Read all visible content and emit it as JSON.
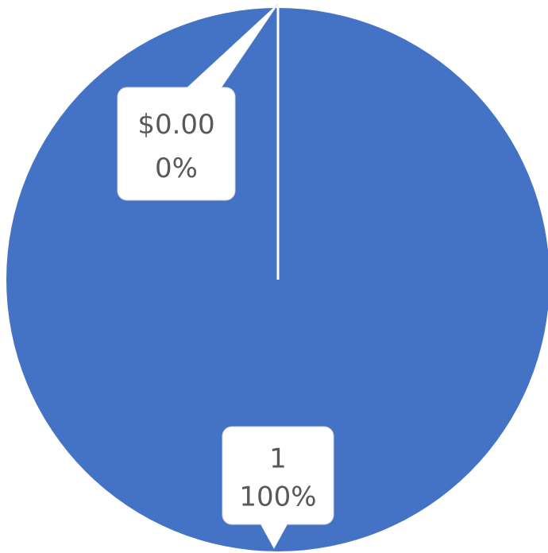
{
  "chart_data": {
    "type": "pie",
    "values": [
      0,
      1
    ],
    "value_labels": [
      "$0.00",
      "1"
    ],
    "percents": [
      0,
      100
    ],
    "percent_labels": [
      "0%",
      "100%"
    ],
    "colors": [
      "#4472c4",
      "#4472c4"
    ]
  }
}
